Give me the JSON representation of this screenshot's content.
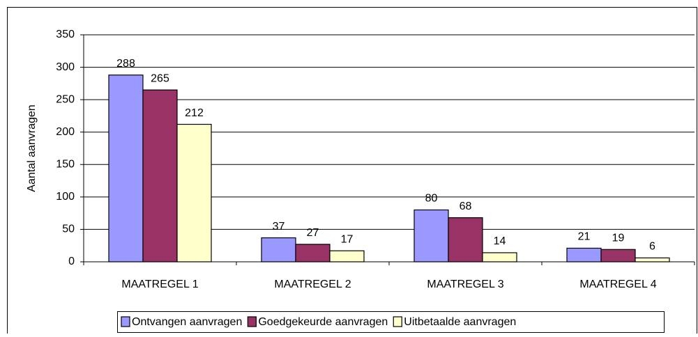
{
  "chart_data": {
    "type": "bar",
    "y_label": "Aantal aanvragen",
    "categories": [
      "MAATREGEL 1",
      "MAATREGEL 2",
      "MAATREGEL 3",
      "MAATREGEL 4"
    ],
    "series": [
      {
        "name": "Ontvangen aanvragen",
        "color": "#9999ff",
        "values": [
          288,
          37,
          80,
          21
        ]
      },
      {
        "name": "Goedgekeurde aanvragen",
        "color": "#993366",
        "values": [
          265,
          27,
          68,
          19
        ]
      },
      {
        "name": "Uitbetaalde aanvragen",
        "color": "#ffffcc",
        "values": [
          212,
          17,
          14,
          6
        ]
      }
    ],
    "ylim": [
      0,
      350
    ],
    "yticks": [
      0,
      50,
      100,
      150,
      200,
      250,
      300,
      350
    ],
    "grid": true,
    "legend": "bottom"
  }
}
